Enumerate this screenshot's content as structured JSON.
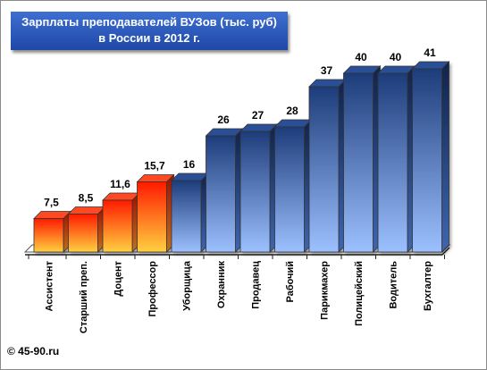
{
  "chart_data": {
    "type": "bar",
    "title": "Зарплаты преподавателей ВУЗов  (тыс. руб)",
    "subtitle": "в России в 2012 г.",
    "categories": [
      "Ассистент",
      "Старший преп.",
      "Доцент",
      "Профессор",
      "Уборщица",
      "Охранник",
      "Продавец",
      "Рабочий",
      "Парикмахер",
      "Полицейский",
      "Водитель",
      "Бухгалтер"
    ],
    "values": [
      7.5,
      8.5,
      11.6,
      15.7,
      16,
      26,
      27,
      28,
      37,
      40,
      40,
      41
    ],
    "value_labels": [
      "7,5",
      "8,5",
      "11,6",
      "15,7",
      "16",
      "26",
      "27",
      "28",
      "37",
      "40",
      "40",
      "41"
    ],
    "highlight_count": 4,
    "colors": {
      "highlight_top": "#ff1a00",
      "highlight_bottom": "#ffd040",
      "normal_top": "#1d3c7a",
      "normal_bottom": "#9dc0ff"
    },
    "ylim": [
      0,
      41
    ],
    "grid": false,
    "legend": "none"
  },
  "footer": {
    "copyright": "© 45-90.ru"
  }
}
